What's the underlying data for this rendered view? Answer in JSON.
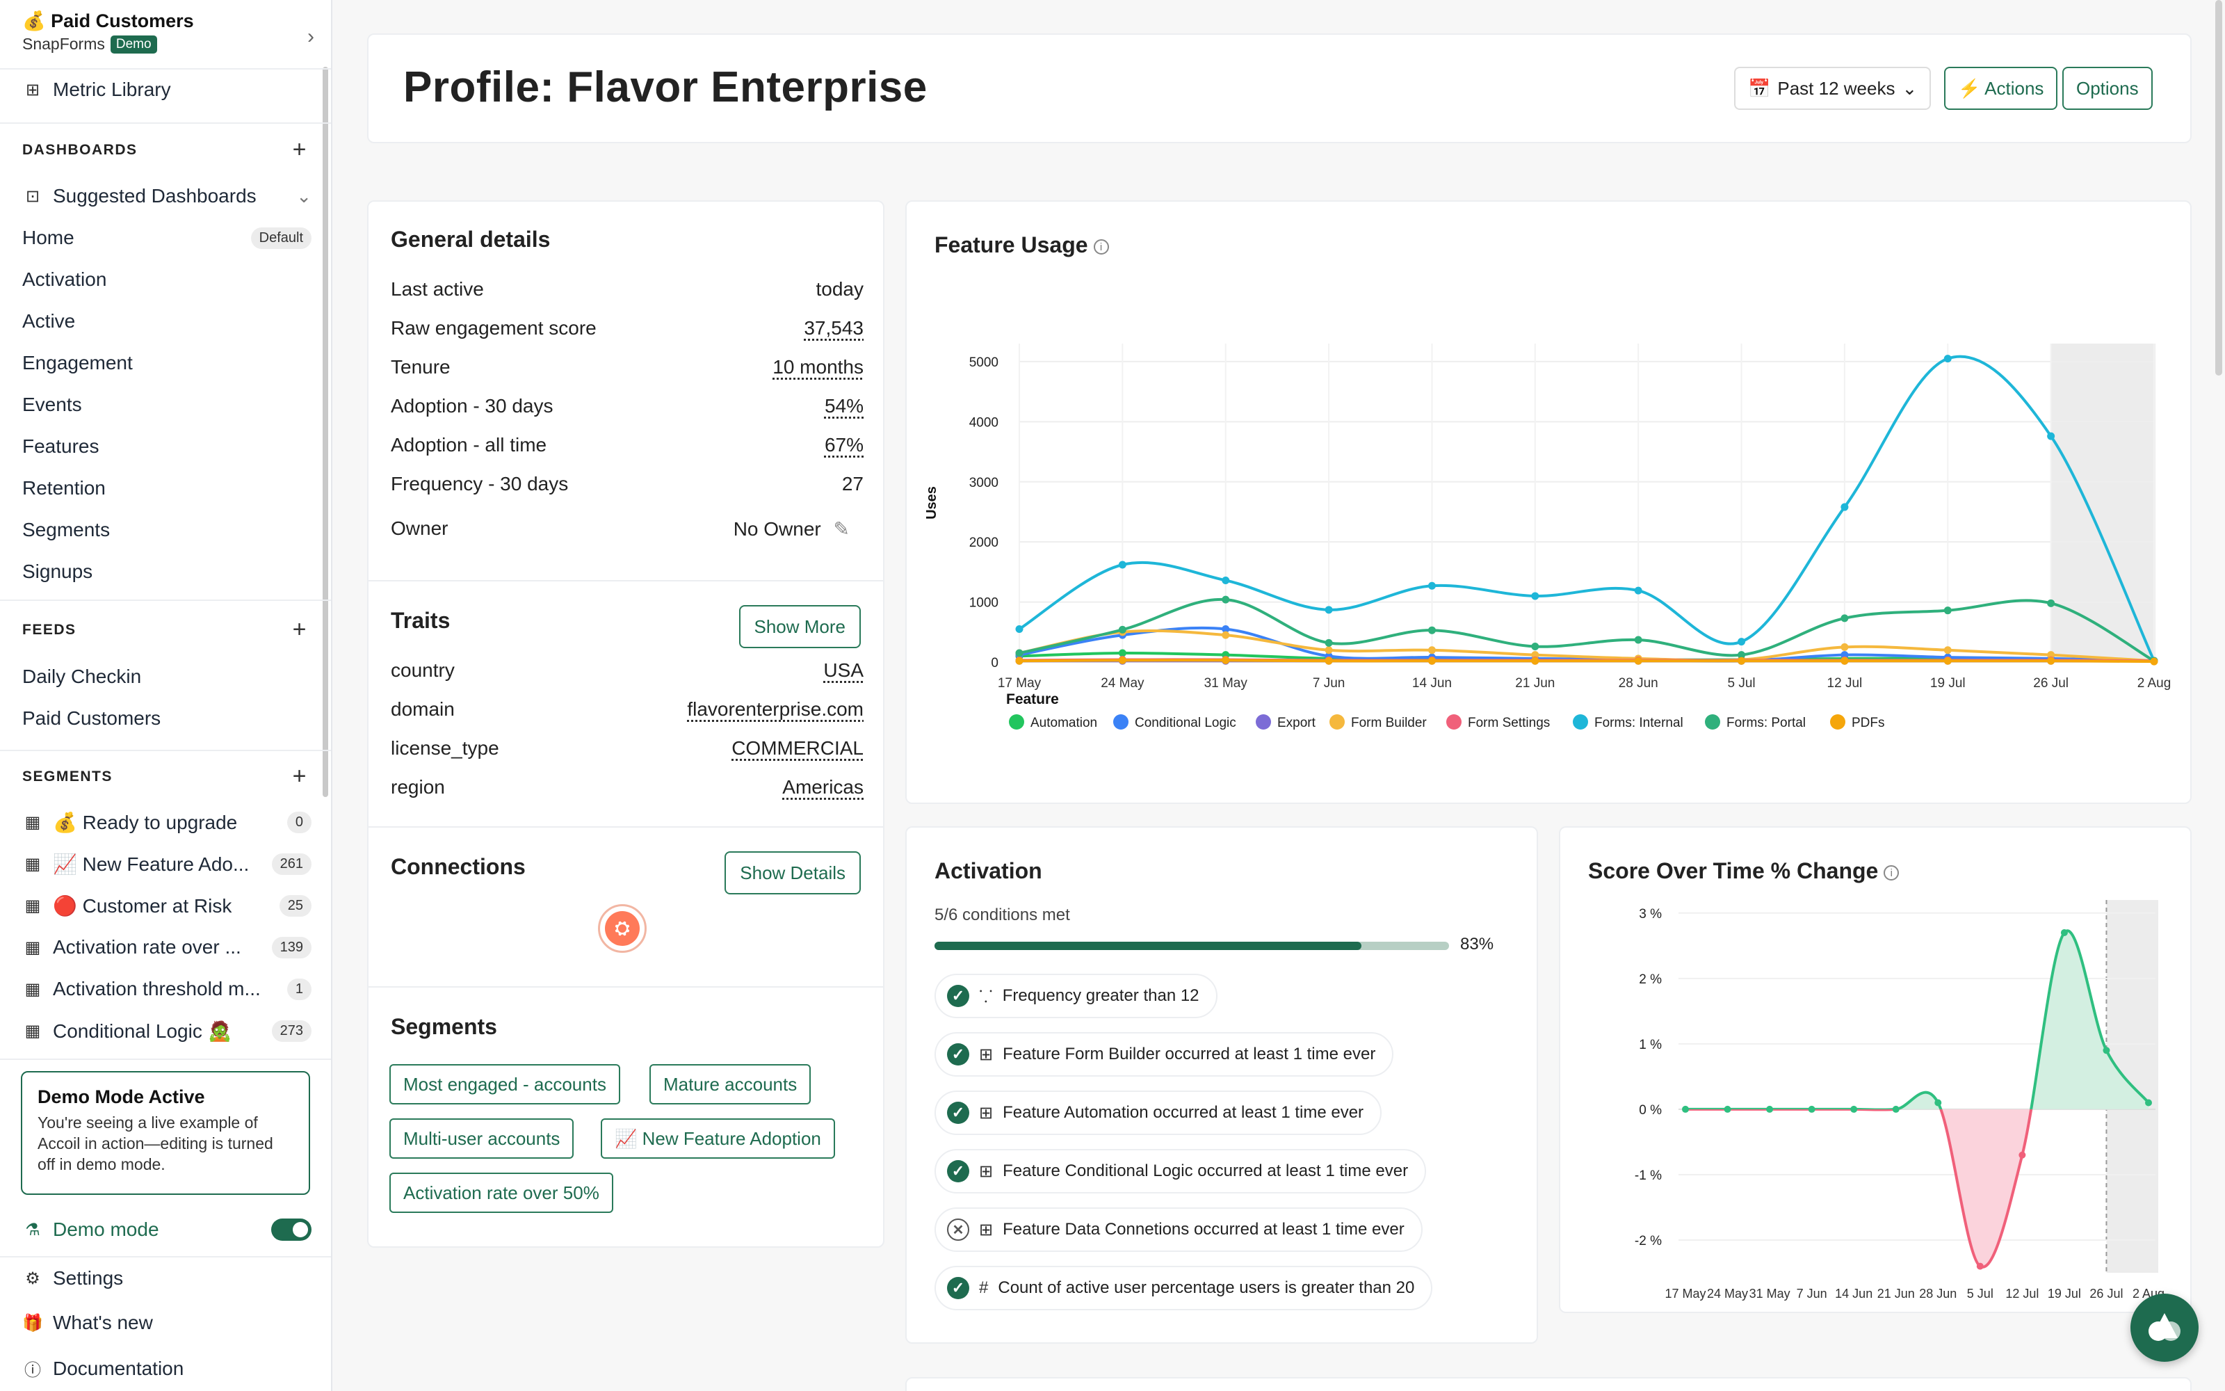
{
  "workspace": {
    "title": "💰 Paid Customers",
    "org": "SnapForms",
    "badge": "Demo"
  },
  "sidebar": {
    "metric_library": "Metric Library",
    "dashboards_label": "DASHBOARDS",
    "suggested": "Suggested Dashboards",
    "dash_items": [
      {
        "label": "Home",
        "pill": "Default"
      },
      {
        "label": "Activation"
      },
      {
        "label": "Active"
      },
      {
        "label": "Engagement"
      },
      {
        "label": "Events"
      },
      {
        "label": "Features"
      },
      {
        "label": "Retention"
      },
      {
        "label": "Segments"
      },
      {
        "label": "Signups"
      }
    ],
    "feeds_label": "FEEDS",
    "feed_items": [
      "Daily Checkin",
      "Paid Customers"
    ],
    "segments_label": "SEGMENTS",
    "segment_items": [
      {
        "label": "💰 Ready to upgrade",
        "count": "0"
      },
      {
        "label": "📈 New Feature Ado...",
        "count": "261"
      },
      {
        "label": "🔴 Customer at Risk",
        "count": "25"
      },
      {
        "label": "Activation rate over ...",
        "count": "139"
      },
      {
        "label": "Activation threshold m...",
        "count": "1"
      },
      {
        "label": "Conditional Logic 🧟",
        "count": "273"
      }
    ],
    "demo_title": "Demo Mode Active",
    "demo_desc": "You're seeing a live example of Accoil in action—editing is turned off in demo mode.",
    "demo_mode": "Demo mode",
    "settings": "Settings",
    "whats_new": "What's new",
    "documentation": "Documentation"
  },
  "header": {
    "title": "Profile: Flavor Enterprise",
    "range": "Past 12 weeks",
    "actions": "⚡ Actions",
    "options": "Options"
  },
  "general": {
    "title": "General details",
    "rows": [
      {
        "k": "Last active",
        "v": "today"
      },
      {
        "k": "Raw engagement score",
        "v": "37,543"
      },
      {
        "k": "Tenure",
        "v": "10 months"
      },
      {
        "k": "Adoption - 30 days",
        "v": "54%"
      },
      {
        "k": "Adoption - all time",
        "v": "67%"
      },
      {
        "k": "Frequency - 30 days",
        "v": "27"
      }
    ],
    "owner_label": "Owner",
    "owner_value": "No Owner",
    "traits_title": "Traits",
    "show_more": "Show More",
    "traits": [
      {
        "k": "country",
        "v": "USA"
      },
      {
        "k": "domain",
        "v": "flavorenterprise.com"
      },
      {
        "k": "license_type",
        "v": "COMMERCIAL"
      },
      {
        "k": "region",
        "v": "Americas"
      }
    ],
    "connections_title": "Connections",
    "show_details": "Show Details",
    "segments_title": "Segments",
    "segment_tags": [
      "Most engaged - accounts",
      "Mature accounts",
      "Multi-user accounts",
      "📈 New Feature Adoption",
      "Activation rate over 50%"
    ]
  },
  "feature_usage": {
    "title": "Feature Usage"
  },
  "activation": {
    "title": "Activation",
    "met": "5/6 conditions met",
    "pct": "83%",
    "progress": 0.83,
    "conditions": [
      {
        "icon": "scatter-icon",
        "text": "Frequency greater than 12",
        "ok": true
      },
      {
        "icon": "grid-icon",
        "text": "Feature Form Builder occurred at least 1 time ever",
        "ok": true
      },
      {
        "icon": "grid-icon",
        "text": "Feature Automation occurred at least 1 time ever",
        "ok": true
      },
      {
        "icon": "grid-icon",
        "text": "Feature Conditional Logic occurred at least 1 time ever",
        "ok": true
      },
      {
        "icon": "grid-icon",
        "text": "Feature Data Connetions occurred at least 1 time ever",
        "ok": false
      },
      {
        "icon": "hash-icon",
        "text": "Count of active user percentage users is greater than 20",
        "ok": true
      }
    ]
  },
  "score": {
    "title": "Score Over Time % Change"
  },
  "chart_data": [
    {
      "type": "line",
      "title": "Feature Usage",
      "xlabel": "",
      "ylabel": "Uses",
      "legend_title": "Feature",
      "categories": [
        "17 May",
        "24 May",
        "31 May",
        "7 Jun",
        "14 Jun",
        "21 Jun",
        "28 Jun",
        "5 Jul",
        "12 Jul",
        "19 Jul",
        "26 Jul",
        "2 Aug"
      ],
      "yticks": [
        "0",
        "1000",
        "2000",
        "3000",
        "4000",
        "5000"
      ],
      "ylim": [
        0,
        5300
      ],
      "series": [
        {
          "name": "Automation",
          "color": "#22c55e",
          "values": [
            100,
            150,
            120,
            60,
            60,
            50,
            40,
            40,
            60,
            60,
            40,
            20
          ]
        },
        {
          "name": "Conditional Logic",
          "color": "#3b82f6",
          "values": [
            120,
            450,
            550,
            100,
            80,
            60,
            40,
            20,
            120,
            80,
            60,
            20
          ]
        },
        {
          "name": "Export",
          "color": "#7c6cd6",
          "values": [
            20,
            20,
            20,
            20,
            20,
            20,
            20,
            20,
            20,
            20,
            20,
            20
          ]
        },
        {
          "name": "Form Builder",
          "color": "#f5b83d",
          "values": [
            150,
            500,
            450,
            200,
            200,
            120,
            60,
            40,
            250,
            200,
            120,
            20
          ]
        },
        {
          "name": "Form Settings",
          "color": "#f0607a",
          "values": [
            30,
            40,
            40,
            30,
            30,
            30,
            30,
            30,
            30,
            30,
            30,
            20
          ]
        },
        {
          "name": "Forms: Internal",
          "color": "#1eb6d8",
          "values": [
            550,
            1620,
            1360,
            870,
            1270,
            1100,
            1190,
            340,
            2580,
            5050,
            3760,
            20
          ]
        },
        {
          "name": "Forms: Portal",
          "color": "#2fb07c",
          "values": [
            150,
            540,
            1040,
            320,
            530,
            260,
            370,
            120,
            730,
            860,
            980,
            20
          ]
        },
        {
          "name": "PDFs",
          "color": "#f5a60b",
          "values": [
            20,
            30,
            30,
            20,
            20,
            20,
            20,
            20,
            20,
            20,
            20,
            10
          ]
        }
      ]
    },
    {
      "type": "area",
      "title": "Score Over Time % Change",
      "categories": [
        "17 May",
        "24 May",
        "31 May",
        "7 Jun",
        "14 Jun",
        "21 Jun",
        "28 Jun",
        "5 Jul",
        "12 Jul",
        "19 Jul",
        "26 Jul",
        "2 Aug"
      ],
      "yticks": [
        "3 %",
        "2 %",
        "1 %",
        "0 %",
        "-1 %",
        "-2 %"
      ],
      "ylim": [
        -2.5,
        3.2
      ],
      "values": [
        0,
        0,
        0,
        0,
        0,
        0,
        0.1,
        -2.4,
        -0.7,
        2.7,
        0.9,
        0.1
      ]
    }
  ]
}
